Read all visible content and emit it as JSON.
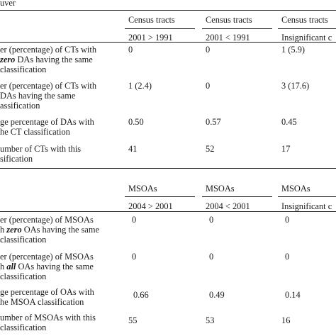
{
  "section1": {
    "caption": "uver",
    "columns": [
      "Census tracts",
      "Census tracts",
      "Census tracts"
    ],
    "subcolumns": [
      "2001 > 1991",
      "2001 < 1991",
      "Insignificant c"
    ],
    "rows": [
      {
        "label_lines": [
          "er (percentage) of CTs with",
          "o DAs having the same",
          "classification"
        ],
        "label_em": "zer",
        "values": [
          "0",
          "0",
          "1 (5.9)"
        ]
      },
      {
        "label_lines": [
          "er (percentage) of CTs with",
          "DAs having the same",
          "assification"
        ],
        "values": [
          "1 (2.4)",
          "0",
          "3 (17.6)"
        ]
      },
      {
        "label_lines": [
          "ge percentage of DAs with",
          "he CT classification"
        ],
        "values": [
          "0.50",
          "0.57",
          "0.45"
        ]
      },
      {
        "label_lines": [
          "umber of CTs with this",
          "sification"
        ],
        "values": [
          "41",
          "52",
          "17"
        ]
      }
    ]
  },
  "section2": {
    "columns": [
      "MSOAs",
      "MSOAs",
      "MSOAs"
    ],
    "subcolumns": [
      "2004 > 2001",
      "2004 < 2001",
      "Insignificant c"
    ],
    "rows": [
      {
        "label_lines": [
          "er (percentage) of MSOAs",
          "h zero OAs having the same",
          "classification"
        ],
        "values": [
          "0",
          "0",
          "0"
        ]
      },
      {
        "label_lines": [
          "er (percentage) of MSOAs",
          "h all OAs having the same",
          "classification"
        ],
        "values": [
          "0",
          "0",
          "0"
        ]
      },
      {
        "label_lines": [
          "ge percentage of OAs with",
          "he MSOA classification"
        ],
        "values": [
          "0.66",
          "0.49",
          "0.14"
        ]
      },
      {
        "label_lines": [
          "umber of MSOAs with this",
          "classification"
        ],
        "values": [
          "55",
          "53",
          "16"
        ]
      }
    ]
  }
}
